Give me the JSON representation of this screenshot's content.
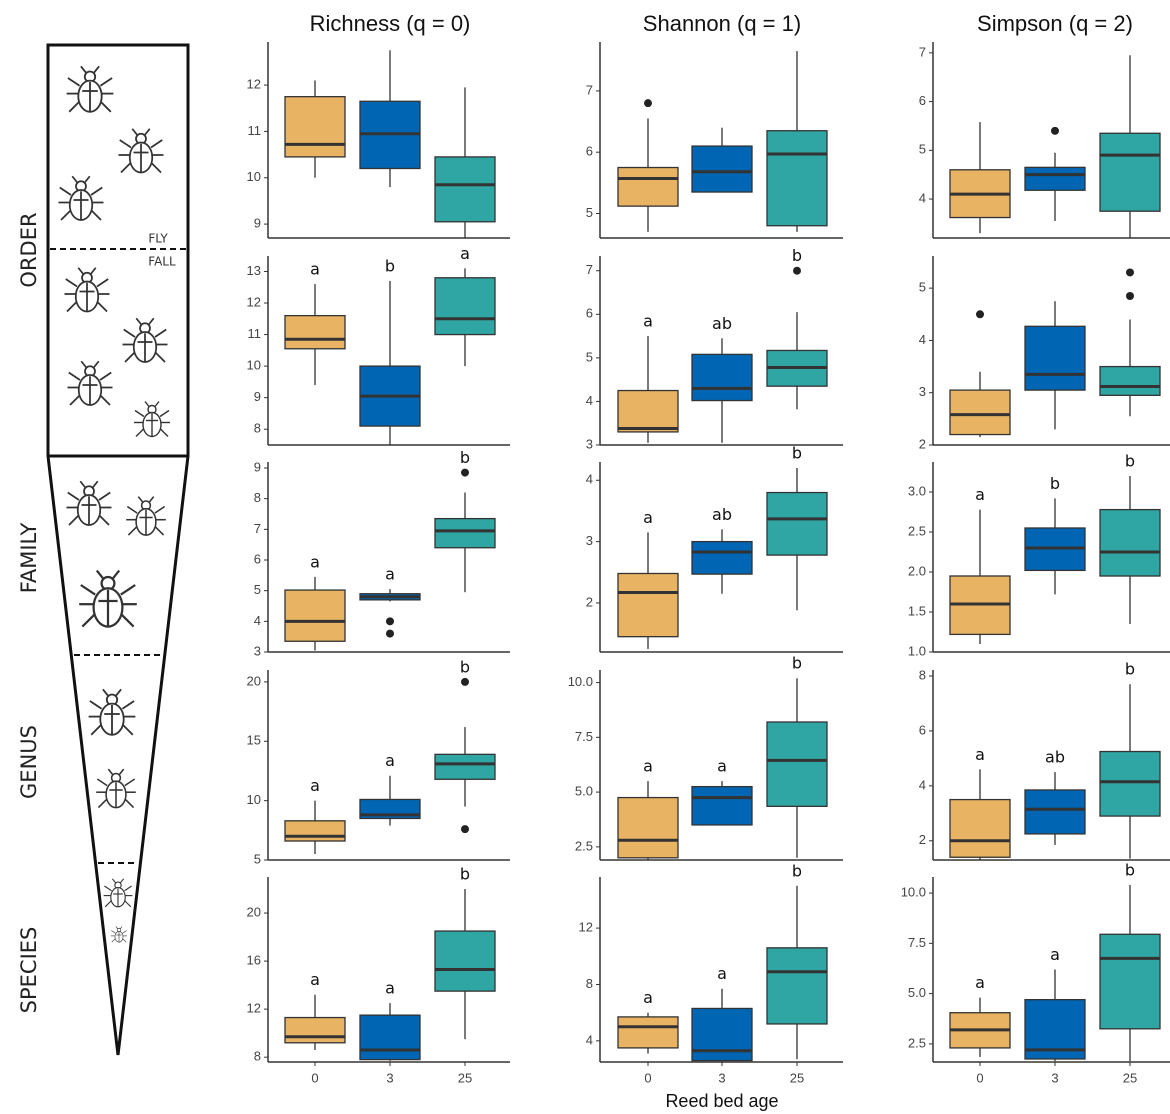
{
  "row_labels": [
    "ORDER",
    "FAMILY",
    "GENUS",
    "SPECIES"
  ],
  "annotations": [
    "FLY",
    "FALL"
  ],
  "chart_data": [
    {
      "type": "box",
      "title": "Richness (q = 0)",
      "categories": [
        null,
        null,
        null
      ],
      "colors": [
        "#e8b464",
        "#0066b3",
        "#2fa6a3"
      ],
      "ylim": [
        8.7,
        12.8
      ],
      "yticks": [
        9,
        10,
        11,
        12
      ],
      "boxes": [
        {
          "min": 10,
          "q1": 10.45,
          "median": 10.72,
          "q3": 11.75,
          "max": 12.1,
          "outliers": []
        },
        {
          "min": 9.8,
          "q1": 10.2,
          "median": 10.95,
          "q3": 11.65,
          "max": 12.75,
          "outliers": []
        },
        {
          "min": 8.7,
          "q1": 9.05,
          "median": 9.85,
          "q3": 10.45,
          "max": 11.95,
          "outliers": []
        }
      ]
    },
    {
      "type": "box",
      "title": "Shannon (q = 1)",
      "categories": [
        null,
        null,
        null
      ],
      "colors": [
        "#e8b464",
        "#0066b3",
        "#2fa6a3"
      ],
      "ylim": [
        4.6,
        7.7
      ],
      "yticks": [
        5,
        6,
        7
      ],
      "boxes": [
        {
          "min": 4.7,
          "q1": 5.12,
          "median": 5.57,
          "q3": 5.75,
          "max": 6.55,
          "outliers": [
            6.8
          ]
        },
        {
          "min": 5.35,
          "q1": 5.35,
          "median": 5.68,
          "q3": 6.1,
          "max": 6.4,
          "outliers": []
        },
        {
          "min": 4.7,
          "q1": 4.8,
          "median": 5.97,
          "q3": 6.35,
          "max": 7.65,
          "outliers": []
        }
      ]
    },
    {
      "type": "box",
      "title": "Simpson (q = 2)",
      "categories": [
        null,
        null,
        null
      ],
      "colors": [
        "#e8b464",
        "#0066b3",
        "#2fa6a3"
      ],
      "ylim": [
        3.2,
        7.1
      ],
      "yticks": [
        4,
        5,
        6,
        7
      ],
      "boxes": [
        {
          "min": 3.3,
          "q1": 3.62,
          "median": 4.1,
          "q3": 4.6,
          "max": 5.58,
          "outliers": []
        },
        {
          "min": 3.55,
          "q1": 4.18,
          "median": 4.5,
          "q3": 4.65,
          "max": 4.95,
          "outliers": [
            5.4
          ]
        },
        {
          "min": 3.2,
          "q1": 3.75,
          "median": 4.9,
          "q3": 5.35,
          "max": 6.95,
          "outliers": []
        }
      ]
    },
    {
      "type": "box",
      "categories": [
        null,
        null,
        null
      ],
      "colors": [
        "#e8b464",
        "#0066b3",
        "#2fa6a3"
      ],
      "ylim": [
        7.5,
        13.3
      ],
      "yticks": [
        8,
        9,
        10,
        11,
        12,
        13
      ],
      "letters": [
        "a",
        "b",
        "a"
      ],
      "boxes": [
        {
          "min": 9.4,
          "q1": 10.55,
          "median": 10.85,
          "q3": 11.6,
          "max": 12.6,
          "outliers": []
        },
        {
          "min": 7.5,
          "q1": 8.1,
          "median": 9.05,
          "q3": 10,
          "max": 12.7,
          "outliers": []
        },
        {
          "min": 10,
          "q1": 11,
          "median": 11.5,
          "q3": 12.8,
          "max": 13.1,
          "outliers": []
        }
      ]
    },
    {
      "type": "box",
      "categories": [
        null,
        null,
        null
      ],
      "colors": [
        "#e8b464",
        "#0066b3",
        "#2fa6a3"
      ],
      "ylim": [
        3,
        7.2
      ],
      "yticks": [
        3,
        4,
        5,
        6,
        7
      ],
      "letters": [
        "a",
        "ab",
        "b"
      ],
      "boxes": [
        {
          "min": 3.05,
          "q1": 3.3,
          "median": 3.38,
          "q3": 4.25,
          "max": 5.5,
          "outliers": []
        },
        {
          "min": 3.05,
          "q1": 4.02,
          "median": 4.3,
          "q3": 5.08,
          "max": 5.45,
          "outliers": []
        },
        {
          "min": 3.82,
          "q1": 4.35,
          "median": 4.78,
          "q3": 5.17,
          "max": 6.05,
          "outliers": [
            7
          ]
        }
      ]
    },
    {
      "type": "box",
      "categories": [
        null,
        null,
        null
      ],
      "colors": [
        "#e8b464",
        "#0066b3",
        "#2fa6a3"
      ],
      "ylim": [
        2,
        5.5
      ],
      "yticks": [
        2,
        3,
        4,
        5
      ],
      "boxes": [
        {
          "min": 2.15,
          "q1": 2.2,
          "median": 2.58,
          "q3": 3.05,
          "max": 3.4,
          "outliers": [
            4.5
          ]
        },
        {
          "min": 2.3,
          "q1": 3.05,
          "median": 3.35,
          "q3": 4.27,
          "max": 4.75,
          "outliers": []
        },
        {
          "min": 2.55,
          "q1": 2.95,
          "median": 3.12,
          "q3": 3.5,
          "max": 4.4,
          "outliers": [
            4.85,
            5.3
          ]
        }
      ]
    },
    {
      "type": "box",
      "categories": [
        null,
        null,
        null
      ],
      "colors": [
        "#e8b464",
        "#0066b3",
        "#2fa6a3"
      ],
      "ylim": [
        3,
        9
      ],
      "yticks": [
        3,
        4,
        5,
        6,
        7,
        8,
        9
      ],
      "letters": [
        "a",
        "a",
        "b"
      ],
      "boxes": [
        {
          "min": 3.05,
          "q1": 3.35,
          "median": 4,
          "q3": 5.02,
          "max": 5.45,
          "outliers": []
        },
        {
          "min": 4.65,
          "q1": 4.7,
          "median": 4.8,
          "q3": 4.9,
          "max": 5.05,
          "outliers": [
            4,
            3.6
          ]
        },
        {
          "min": 4.95,
          "q1": 6.4,
          "median": 6.95,
          "q3": 7.35,
          "max": 8.2,
          "outliers": [
            8.85
          ]
        }
      ]
    },
    {
      "type": "box",
      "categories": [
        null,
        null,
        null
      ],
      "colors": [
        "#e8b464",
        "#0066b3",
        "#2fa6a3"
      ],
      "ylim": [
        1.2,
        4.2
      ],
      "yticks": [
        2,
        3,
        4
      ],
      "letters": [
        "a",
        "ab",
        "b"
      ],
      "boxes": [
        {
          "min": 1.25,
          "q1": 1.45,
          "median": 2.17,
          "q3": 2.48,
          "max": 3.15,
          "outliers": []
        },
        {
          "min": 2.15,
          "q1": 2.47,
          "median": 2.83,
          "q3": 3.0,
          "max": 3.2,
          "outliers": []
        },
        {
          "min": 1.88,
          "q1": 2.78,
          "median": 3.37,
          "q3": 3.8,
          "max": 4.2,
          "outliers": []
        }
      ]
    },
    {
      "type": "box",
      "categories": [
        null,
        null,
        null
      ],
      "colors": [
        "#e8b464",
        "#0066b3",
        "#2fa6a3"
      ],
      "ylim": [
        1,
        3.3
      ],
      "yticks": [
        {
          "value": 1,
          "label": "1.0"
        },
        1.5,
        {
          "value": 2,
          "label": "2.0"
        },
        2.5,
        {
          "value": 3,
          "label": "3.0"
        }
      ],
      "letters": [
        "a",
        "b",
        "b"
      ],
      "boxes": [
        {
          "min": 1.1,
          "q1": 1.22,
          "median": 1.6,
          "q3": 1.95,
          "max": 2.78,
          "outliers": []
        },
        {
          "min": 1.72,
          "q1": 2.02,
          "median": 2.3,
          "q3": 2.55,
          "max": 2.92,
          "outliers": []
        },
        {
          "min": 1.35,
          "q1": 1.95,
          "median": 2.25,
          "q3": 2.78,
          "max": 3.2,
          "outliers": []
        }
      ]
    },
    {
      "type": "box",
      "categories": [
        null,
        null,
        null
      ],
      "colors": [
        "#e8b464",
        "#0066b3",
        "#2fa6a3"
      ],
      "ylim": [
        5,
        20.5
      ],
      "yticks": [
        5,
        10,
        15,
        20
      ],
      "letters": [
        "a",
        "a",
        "b"
      ],
      "boxes": [
        {
          "min": 5.5,
          "q1": 6.6,
          "median": 7,
          "q3": 8.3,
          "max": 10,
          "outliers": []
        },
        {
          "min": 7.9,
          "q1": 8.5,
          "median": 8.8,
          "q3": 10.1,
          "max": 12.1,
          "outliers": []
        },
        {
          "min": 9.5,
          "q1": 11.8,
          "median": 13.1,
          "q3": 13.9,
          "max": 16.2,
          "outliers": [
            20,
            7.6
          ]
        }
      ]
    },
    {
      "type": "box",
      "categories": [
        null,
        null,
        null
      ],
      "colors": [
        "#e8b464",
        "#0066b3",
        "#2fa6a3"
      ],
      "ylim": [
        1.9,
        10.3
      ],
      "yticks": [
        2.5,
        {
          "value": 5,
          "label": "5.0"
        },
        7.5,
        {
          "value": 10,
          "label": "10.0"
        }
      ],
      "letters": [
        "a",
        "a",
        "b"
      ],
      "boxes": [
        {
          "min": 1.9,
          "q1": 2.0,
          "median": 2.8,
          "q3": 4.75,
          "max": 5.5,
          "outliers": []
        },
        {
          "min": 3.5,
          "q1": 3.5,
          "median": 4.75,
          "q3": 5.25,
          "max": 5.5,
          "outliers": []
        },
        {
          "min": 2.0,
          "q1": 4.35,
          "median": 6.45,
          "q3": 8.2,
          "max": 10.2,
          "outliers": []
        }
      ]
    },
    {
      "type": "box",
      "categories": [
        null,
        null,
        null
      ],
      "colors": [
        "#e8b464",
        "#0066b3",
        "#2fa6a3"
      ],
      "ylim": [
        1.3,
        8
      ],
      "yticks": [
        2,
        4,
        6,
        8
      ],
      "letters": [
        "a",
        "ab",
        "b"
      ],
      "boxes": [
        {
          "min": 1.3,
          "q1": 1.4,
          "median": 2.0,
          "q3": 3.5,
          "max": 4.6,
          "outliers": []
        },
        {
          "min": 1.85,
          "q1": 2.25,
          "median": 3.15,
          "q3": 3.85,
          "max": 4.5,
          "outliers": []
        },
        {
          "min": 1.35,
          "q1": 2.9,
          "median": 4.15,
          "q3": 5.25,
          "max": 7.7,
          "outliers": []
        }
      ]
    },
    {
      "type": "box",
      "categories": [
        "0",
        "3",
        "25"
      ],
      "colors": [
        "#e8b464",
        "#0066b3",
        "#2fa6a3"
      ],
      "ylim": [
        7.6,
        22.5
      ],
      "yticks": [
        8,
        12,
        16,
        20
      ],
      "letters": [
        "a",
        "a",
        "b"
      ],
      "boxes": [
        {
          "min": 8.6,
          "q1": 9.2,
          "median": 9.7,
          "q3": 11.3,
          "max": 13.2,
          "outliers": []
        },
        {
          "min": 7.7,
          "q1": 7.8,
          "median": 8.6,
          "q3": 11.5,
          "max": 12.5,
          "outliers": []
        },
        {
          "min": 9.5,
          "q1": 13.5,
          "median": 15.3,
          "q3": 18.5,
          "max": 22,
          "outliers": []
        }
      ]
    },
    {
      "type": "box",
      "categories": [
        "0",
        "3",
        "25"
      ],
      "colors": [
        "#e8b464",
        "#0066b3",
        "#2fa6a3"
      ],
      "xlabel": "Reed bed age",
      "ylim": [
        2.5,
        15.2
      ],
      "yticks": [
        4,
        8,
        12
      ],
      "letters": [
        "a",
        "a",
        "b"
      ],
      "boxes": [
        {
          "min": 3.1,
          "q1": 3.5,
          "median": 5,
          "q3": 5.7,
          "max": 6,
          "outliers": []
        },
        {
          "min": 2.5,
          "q1": 2.6,
          "median": 3.3,
          "q3": 6.3,
          "max": 7.7,
          "outliers": []
        },
        {
          "min": 2.7,
          "q1": 5.2,
          "median": 8.9,
          "q3": 10.6,
          "max": 15,
          "outliers": []
        }
      ]
    },
    {
      "type": "box",
      "categories": [
        "0",
        "3",
        "25"
      ],
      "colors": [
        "#e8b464",
        "#0066b3",
        "#2fa6a3"
      ],
      "ylim": [
        1.6,
        10.5
      ],
      "yticks": [
        2.5,
        {
          "value": 5,
          "label": "5.0"
        },
        7.5,
        {
          "value": 10,
          "label": "10.0"
        }
      ],
      "letters": [
        "a",
        "a",
        "b"
      ],
      "boxes": [
        {
          "min": 1.85,
          "q1": 2.3,
          "median": 3.2,
          "q3": 4.05,
          "max": 4.8,
          "outliers": []
        },
        {
          "min": 1.65,
          "q1": 1.75,
          "median": 2.2,
          "q3": 4.7,
          "max": 6.2,
          "outliers": []
        },
        {
          "min": 1.65,
          "q1": 3.25,
          "median": 6.75,
          "q3": 7.95,
          "max": 10.4,
          "outliers": []
        }
      ]
    }
  ]
}
